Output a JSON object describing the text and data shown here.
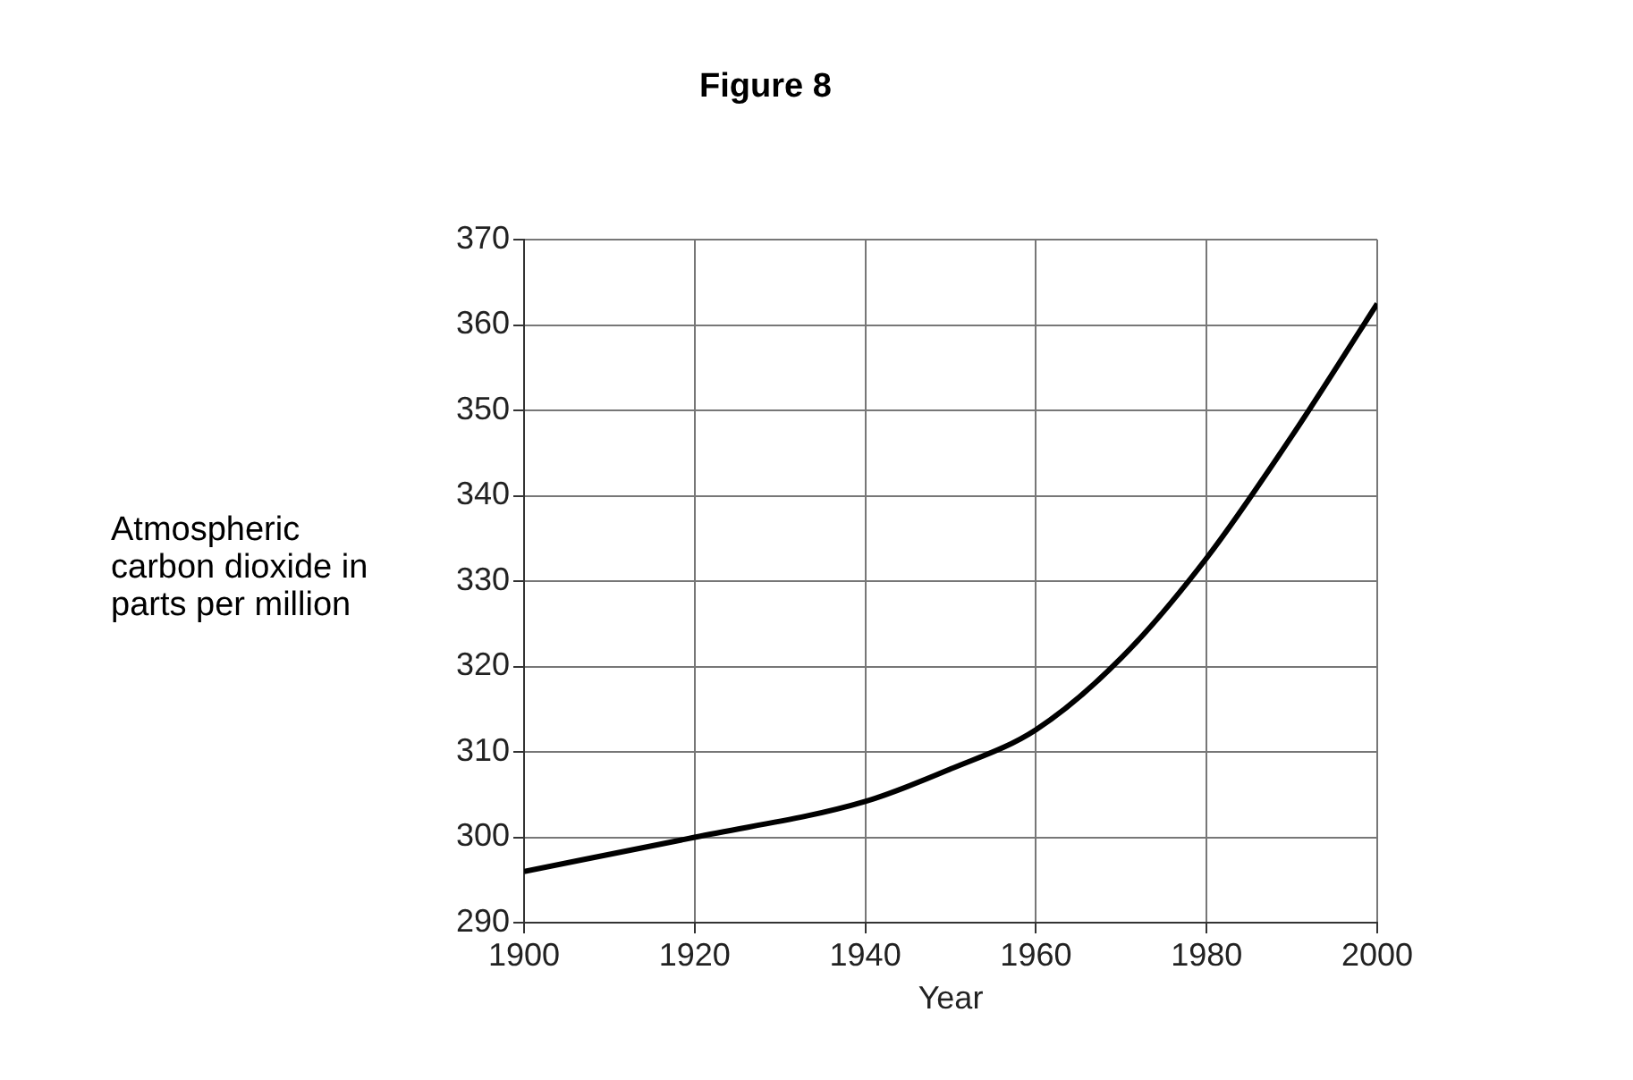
{
  "chart_data": {
    "type": "line",
    "title": "Figure 8",
    "xlabel": "Year",
    "ylabel": "Atmospheric carbon dioxide in parts per million",
    "x": [
      1900,
      1920,
      1940,
      1950,
      1960,
      1970,
      1980,
      1990,
      2000
    ],
    "series": [
      {
        "color": "#000000",
        "values": [
          296,
          300,
          304.2,
          308,
          312.6,
          321,
          332.7,
          347,
          362.5
        ]
      }
    ],
    "xlim": [
      1900,
      2000
    ],
    "xticks": [
      1900,
      1920,
      1940,
      1960,
      1980,
      2000
    ],
    "ylim": [
      290,
      370
    ],
    "yticks": [
      290,
      300,
      310,
      320,
      330,
      340,
      350,
      360,
      370
    ],
    "grid": true,
    "legend": false,
    "marker": "none",
    "line_style": "solid"
  }
}
